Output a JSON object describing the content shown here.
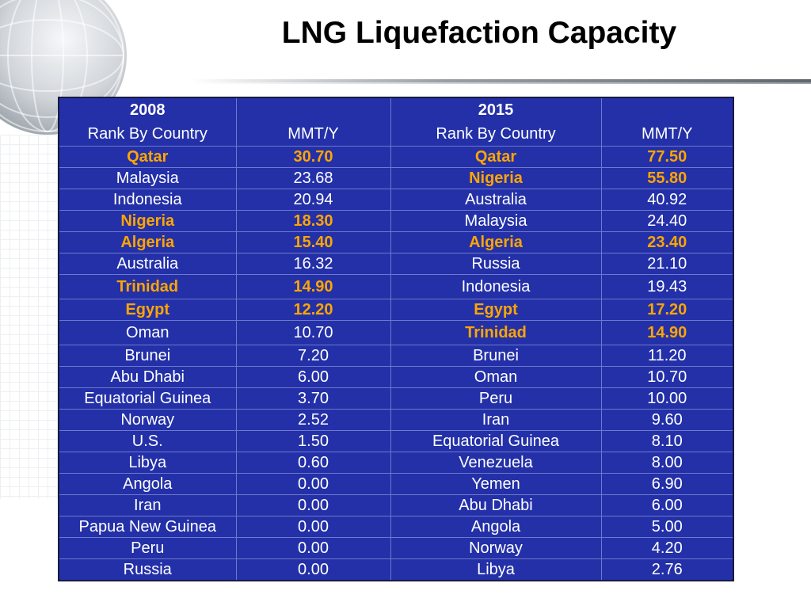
{
  "slide": {
    "title": "LNG Liquefaction Capacity"
  },
  "table": {
    "header": {
      "year_a": "2008",
      "year_b": "2015",
      "rank_label_a": "Rank By Country",
      "mmt_label_a": "MMT/Y",
      "rank_label_b": "Rank By Country",
      "mmt_label_b": "MMT/Y"
    },
    "rows": [
      {
        "c2008": "Qatar",
        "v2008": "30.70",
        "c2015": "Qatar",
        "v2015": "77.50"
      },
      {
        "c2008": "Malaysia",
        "v2008": "23.68",
        "c2015": "Nigeria",
        "v2015": "55.80"
      },
      {
        "c2008": "Indonesia",
        "v2008": "20.94",
        "c2015": "Australia",
        "v2015": "40.92"
      },
      {
        "c2008": "Nigeria",
        "v2008": "18.30",
        "c2015": "Malaysia",
        "v2015": "24.40"
      },
      {
        "c2008": "Algeria",
        "v2008": "15.40",
        "c2015": "Algeria",
        "v2015": "23.40"
      },
      {
        "c2008": "Australia",
        "v2008": "16.32",
        "c2015": "Russia",
        "v2015": "21.10"
      },
      {
        "c2008": "Trinidad",
        "v2008": "14.90",
        "c2015": "Indonesia",
        "v2015": "19.43"
      },
      {
        "c2008": "Egypt",
        "v2008": "12.20",
        "c2015": "Egypt",
        "v2015": "17.20"
      },
      {
        "c2008": "Oman",
        "v2008": "10.70",
        "c2015": "Trinidad",
        "v2015": "14.90"
      },
      {
        "c2008": "Brunei",
        "v2008": "7.20",
        "c2015": "Brunei",
        "v2015": "11.20"
      },
      {
        "c2008": "Abu Dhabi",
        "v2008": "6.00",
        "c2015": "Oman",
        "v2015": "10.70"
      },
      {
        "c2008": "Equatorial Guinea",
        "v2008": "3.70",
        "c2015": "Peru",
        "v2015": "10.00"
      },
      {
        "c2008": "Norway",
        "v2008": "2.52",
        "c2015": "Iran",
        "v2015": "9.60"
      },
      {
        "c2008": "U.S.",
        "v2008": "1.50",
        "c2015": "Equatorial Guinea",
        "v2015": "8.10"
      },
      {
        "c2008": "Libya",
        "v2008": "0.60",
        "c2015": "Venezuela",
        "v2015": "8.00"
      },
      {
        "c2008": "Angola",
        "v2008": "0.00",
        "c2015": "Yemen",
        "v2015": "6.90"
      },
      {
        "c2008": "Iran",
        "v2008": "0.00",
        "c2015": "Abu Dhabi",
        "v2015": "6.00"
      },
      {
        "c2008": "Papua New Guinea",
        "v2008": "0.00",
        "c2015": "Angola",
        "v2015": "5.00"
      },
      {
        "c2008": "Peru",
        "v2008": "0.00",
        "c2015": "Norway",
        "v2015": "4.20"
      },
      {
        "c2008": "Russia",
        "v2008": "0.00",
        "c2015": "Libya",
        "v2015": "2.76"
      }
    ]
  },
  "colors": {
    "table_bg": "#2330a8",
    "highlight": "#ffa500",
    "text": "#ffffff"
  },
  "icons": {
    "decoration": "globe-icon"
  }
}
